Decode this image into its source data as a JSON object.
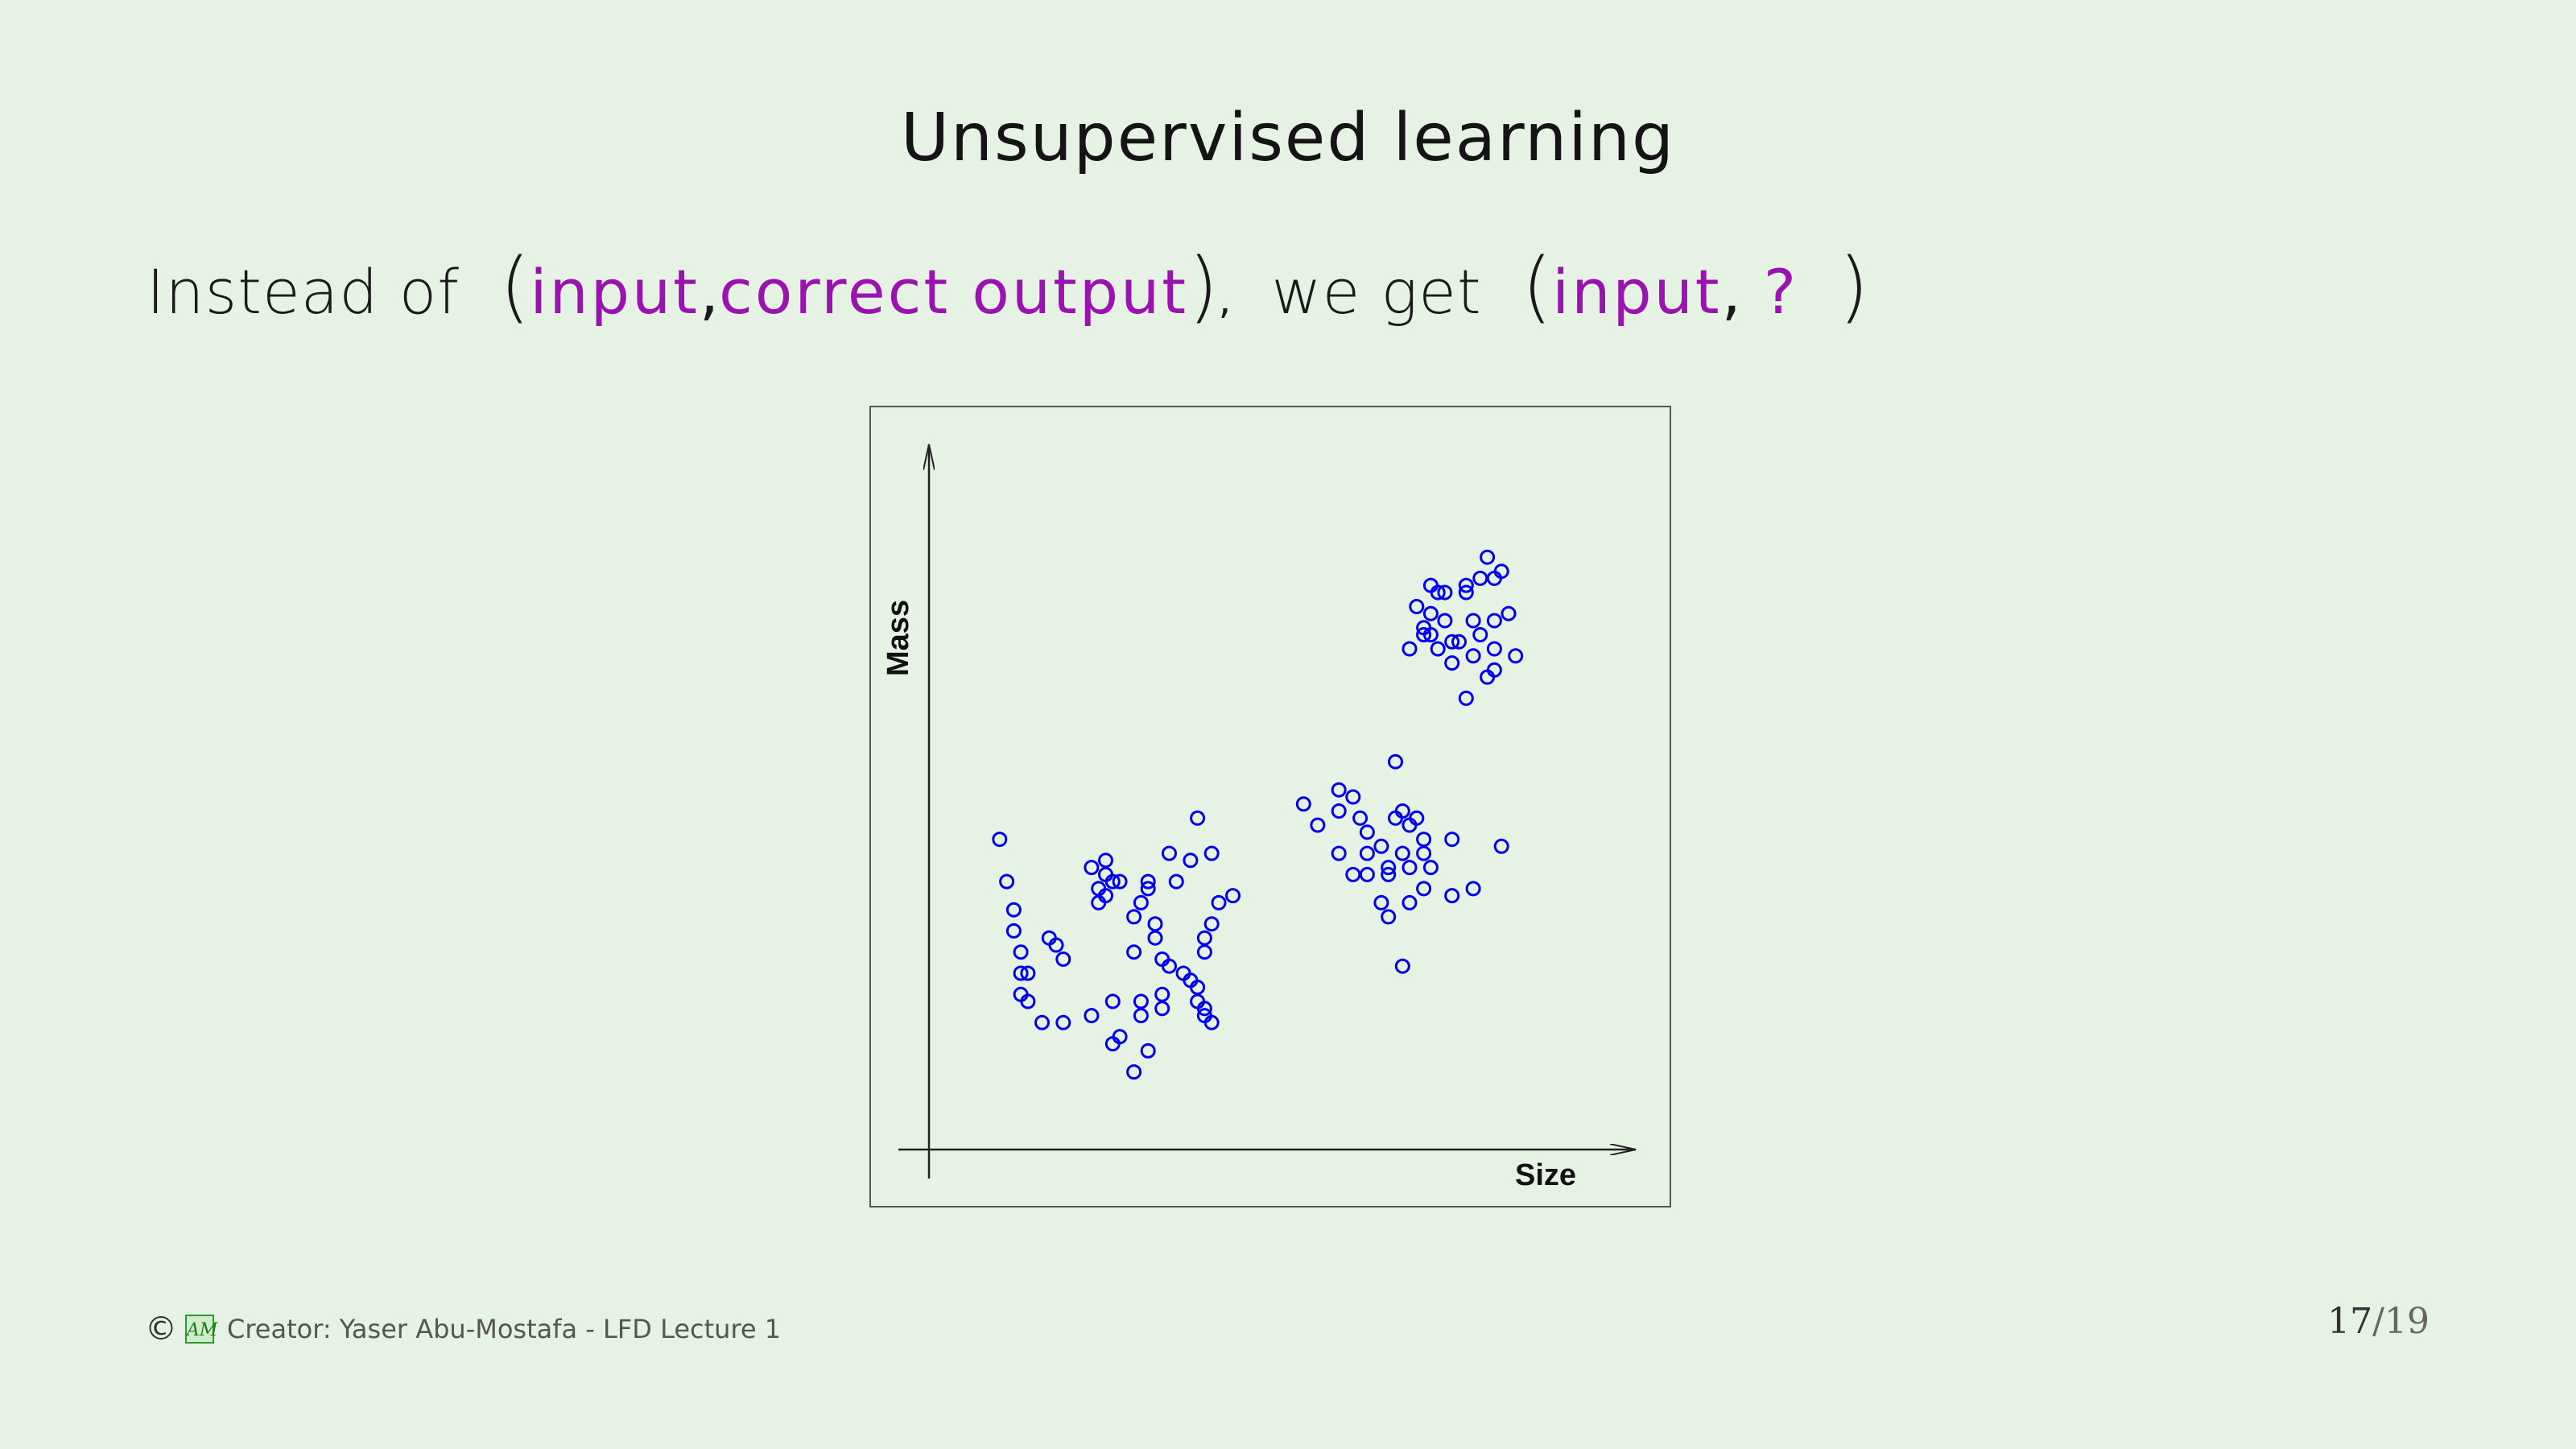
{
  "slide": {
    "title": "Unsupervised learning",
    "line": {
      "prefix": "Instead of",
      "open_paren_1": "(",
      "input_1": "input",
      "comma_1": ",",
      "correct_output": "correct output",
      "close_paren_1": ")",
      "comma_2": ",",
      "middle": "we get",
      "open_paren_2": "(",
      "input_2": "input",
      "comma_3": ",",
      "question": "?",
      "close_paren_2": ")"
    }
  },
  "footer": {
    "copyright_icon": "©",
    "logo_icon": "AML-logo-icon",
    "credit": "Creator: Yaser Abu-Mostafa - LFD Lecture 1",
    "page_current": "17",
    "page_separator": "/",
    "page_total": "19"
  },
  "colors": {
    "background": "#e6f2e4",
    "accent_purple": "#9a12b0",
    "point_blue": "#0000ee"
  },
  "chart_data": {
    "type": "scatter",
    "xlabel": "Size",
    "ylabel": "Mass",
    "marker": "open-circle",
    "grid": false,
    "xlim": [
      0,
      100
    ],
    "ylim": [
      0,
      100
    ],
    "series": [
      {
        "x": [
          10,
          11,
          12,
          12,
          13,
          13,
          13,
          14,
          14,
          16,
          17,
          18,
          19,
          19,
          23,
          23,
          24,
          24,
          25,
          25,
          25,
          26,
          26,
          26,
          27,
          27,
          29,
          29,
          29,
          30,
          30,
          30,
          31,
          31,
          31,
          32,
          32,
          33,
          33,
          33,
          34,
          34,
          35,
          36,
          37,
          37,
          38,
          38,
          38,
          39,
          39,
          39,
          39,
          40,
          40,
          40,
          41,
          43
        ],
        "y": [
          44,
          38,
          34,
          31,
          28,
          25,
          22,
          25,
          21,
          18,
          30,
          29,
          18,
          27,
          19,
          40,
          35,
          37,
          39,
          36,
          41,
          38,
          15,
          21,
          16,
          38,
          33,
          28,
          11,
          21,
          35,
          19,
          37,
          14,
          38,
          30,
          32,
          20,
          22,
          27,
          26,
          42,
          38,
          25,
          24,
          41,
          21,
          23,
          47,
          28,
          20,
          30,
          19,
          32,
          42,
          18,
          35,
          36
        ]
      },
      {
        "x": [
          53,
          55,
          58,
          58,
          58,
          60,
          60,
          61,
          62,
          62,
          62,
          64,
          64,
          65,
          65,
          65,
          66,
          66,
          67,
          67,
          67,
          68,
          68,
          68,
          69,
          70,
          70,
          70,
          71,
          74,
          74,
          77,
          81
        ],
        "y": [
          49,
          46,
          51,
          48,
          42,
          39,
          50,
          47,
          39,
          45,
          42,
          35,
          43,
          40,
          33,
          39,
          55,
          47,
          42,
          26,
          48,
          35,
          40,
          46,
          47,
          42,
          44,
          37,
          40,
          44,
          36,
          37,
          43
        ]
      },
      {
        "x": [
          68,
          69,
          70,
          70,
          71,
          71,
          71,
          72,
          72,
          73,
          73,
          74,
          74,
          75,
          76,
          76,
          76,
          77,
          77,
          78,
          78,
          79,
          79,
          80,
          80,
          80,
          80,
          81,
          82,
          83
        ],
        "y": [
          71,
          77,
          74,
          73,
          73,
          80,
          76,
          79,
          71,
          75,
          79,
          69,
          72,
          72,
          64,
          79,
          80,
          75,
          70,
          81,
          73,
          84,
          67,
          68,
          71,
          75,
          81,
          82,
          76,
          70
        ]
      }
    ]
  }
}
